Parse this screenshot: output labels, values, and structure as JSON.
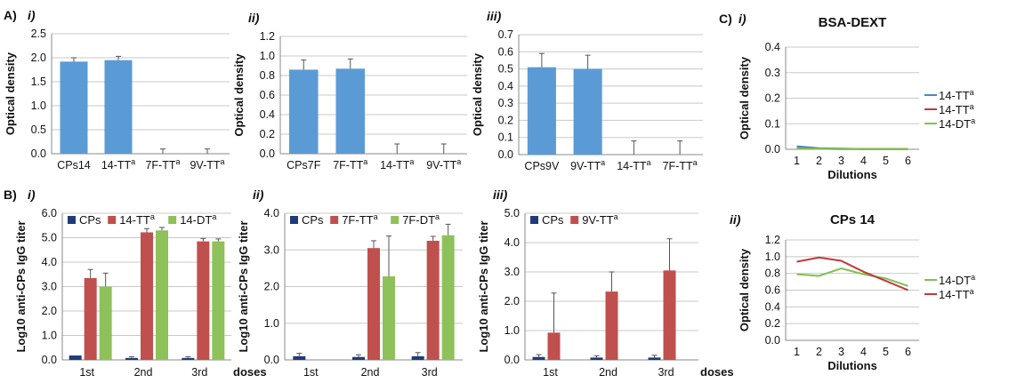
{
  "colors": {
    "blue": "#5b9bd5",
    "navy": "#1f3b7a",
    "red": "#c0504d",
    "green": "#8fc15a",
    "red_line": "#c0393b",
    "green_line": "#7fc24f",
    "blue_line": "#4a86c8"
  },
  "charts": [
    {
      "panel": "A)",
      "sub": "i)",
      "type": "bar",
      "ylabel": "Optical density",
      "categories": [
        "CPs14",
        "14-TT",
        "7F-TT",
        "9V-TT"
      ],
      "sup": [
        "",
        "a",
        "a",
        "a"
      ],
      "ylim": [
        0,
        2.5
      ],
      "yticks": [
        "0.0",
        "0.5",
        "1.0",
        "1.5",
        "2.0",
        "2.5"
      ],
      "values": [
        1.92,
        1.95,
        0.0,
        0.0
      ],
      "errors": [
        0.08,
        0.08,
        0.1,
        0.1
      ]
    },
    {
      "panel": "",
      "sub": "ii)",
      "type": "bar",
      "ylabel": "Optical density",
      "categories": [
        "CPs7F",
        "7F-TT",
        "14-TT",
        "9V-TT"
      ],
      "sup": [
        "",
        "a",
        "a",
        "a"
      ],
      "ylim": [
        0,
        1.2
      ],
      "yticks": [
        "0.0",
        "0.2",
        "0.4",
        "0.6",
        "0.8",
        "1.0",
        "1.2"
      ],
      "values": [
        0.86,
        0.87,
        0.0,
        0.0
      ],
      "errors": [
        0.1,
        0.1,
        0.1,
        0.1
      ]
    },
    {
      "panel": "",
      "sub": "iii)",
      "type": "bar",
      "ylabel": "Optical density",
      "categories": [
        "CPs9V",
        "9V-TT",
        "14-TT",
        "7F-TT"
      ],
      "sup": [
        "",
        "a",
        "a",
        "a"
      ],
      "ylim": [
        0,
        0.7
      ],
      "yticks": [
        "0.0",
        "0.1",
        "0.2",
        "0.3",
        "0.4",
        "0.5",
        "0.6",
        "0.7"
      ],
      "values": [
        0.51,
        0.5,
        0.0,
        0.0
      ],
      "errors": [
        0.08,
        0.08,
        0.08,
        0.08
      ]
    },
    {
      "panel": "B)",
      "sub": "i)",
      "type": "grouped-bar",
      "ylabel": "Log10 anti-CPs IgG titer",
      "xlabel": "doses",
      "categories": [
        "1st",
        "2nd",
        "3rd"
      ],
      "ylim": [
        0,
        6
      ],
      "yticks": [
        "0.0",
        "1.0",
        "2.0",
        "3.0",
        "4.0",
        "5.0",
        "6.0"
      ],
      "series": [
        {
          "name": "CPs",
          "sup": "",
          "color": "#1f3b7a",
          "values": [
            0.18,
            0.08,
            0.08
          ],
          "errors": [
            0,
            0.05,
            0.05
          ]
        },
        {
          "name": "14-TT",
          "sup": "a",
          "color": "#c0504d",
          "values": [
            3.35,
            5.22,
            4.85
          ],
          "errors": [
            0.35,
            0.15,
            0.12
          ]
        },
        {
          "name": "14-DT",
          "sup": "a",
          "color": "#8fc15a",
          "values": [
            3.0,
            5.3,
            4.85
          ],
          "errors": [
            0.55,
            0.12,
            0.1
          ]
        }
      ]
    },
    {
      "panel": "",
      "sub": "ii)",
      "type": "grouped-bar",
      "ylabel": "Log10 anti-CPs IgG titer",
      "xlabel": "",
      "categories": [
        "1st",
        "2nd",
        "3rd"
      ],
      "ylim": [
        0,
        4
      ],
      "yticks": [
        "0.0",
        "1.0",
        "2.0",
        "3.0",
        "4.0"
      ],
      "series": [
        {
          "name": "CPs",
          "sup": "",
          "color": "#1f3b7a",
          "values": [
            0.1,
            0.08,
            0.1
          ],
          "errors": [
            0.08,
            0.06,
            0.1
          ]
        },
        {
          "name": "7F-TT",
          "sup": "a",
          "color": "#c0504d",
          "values": [
            0.0,
            3.05,
            3.25
          ],
          "errors": [
            0,
            0.2,
            0.12
          ]
        },
        {
          "name": "7F-DT",
          "sup": "a",
          "color": "#8fc15a",
          "values": [
            0.0,
            2.28,
            3.4
          ],
          "errors": [
            0,
            1.1,
            0.3
          ]
        }
      ]
    },
    {
      "panel": "",
      "sub": "iii)",
      "type": "grouped-bar",
      "ylabel": "Log10 anti-CPs IgG titer",
      "xlabel": "doses",
      "categories": [
        "1st",
        "2nd",
        "3rd"
      ],
      "ylim": [
        0,
        5
      ],
      "yticks": [
        "0.0",
        "1.0",
        "2.0",
        "3.0",
        "4.0",
        "5.0"
      ],
      "series": [
        {
          "name": "CPs",
          "sup": "",
          "color": "#1f3b7a",
          "values": [
            0.1,
            0.08,
            0.08
          ],
          "errors": [
            0.08,
            0.06,
            0.08
          ]
        },
        {
          "name": "9V-TT",
          "sup": "a",
          "color": "#c0504d",
          "values": [
            0.93,
            2.33,
            3.05
          ],
          "errors": [
            1.35,
            0.67,
            1.08
          ]
        }
      ]
    },
    {
      "panel": "C)",
      "sub": "i)",
      "type": "line",
      "title": "BSA-DEXT",
      "ylabel": "Optical density",
      "xlabel": "Dilutions",
      "x": [
        1,
        2,
        3,
        4,
        5,
        6
      ],
      "ylim": [
        0,
        0.4
      ],
      "yticks": [
        "0.0",
        "0.1",
        "0.2",
        "0.3",
        "0.4"
      ],
      "series": [
        {
          "name": "14-TT",
          "sup": "a",
          "color": "#4a86c8",
          "values": [
            0.012,
            0.004,
            0.003,
            0.001,
            0.001,
            0.001
          ]
        },
        {
          "name": "14-TT",
          "sup": "a",
          "color": "#c0393b",
          "values": [
            0.004,
            0.002,
            0.001,
            0.001,
            0.001,
            0.001
          ]
        },
        {
          "name": "14-DT",
          "sup": "a",
          "color": "#7fc24f",
          "values": [
            0.003,
            0.002,
            0.002,
            0.001,
            0.001,
            0.001
          ]
        }
      ]
    },
    {
      "panel": "",
      "sub": "ii)",
      "type": "line",
      "title": "CPs 14",
      "ylabel": "Optical density",
      "xlabel": "Dilutions",
      "x": [
        1,
        2,
        3,
        4,
        5,
        6
      ],
      "ylim": [
        0,
        1.2
      ],
      "yticks": [
        "0.0",
        "0.2",
        "0.4",
        "0.6",
        "0.8",
        "1.0",
        "1.2"
      ],
      "series": [
        {
          "name": "14-DT",
          "sup": "a",
          "color": "#7fc24f",
          "values": [
            0.79,
            0.77,
            0.86,
            0.79,
            0.74,
            0.65
          ]
        },
        {
          "name": "14-TT",
          "sup": "a",
          "color": "#c0393b",
          "values": [
            0.94,
            0.99,
            0.95,
            0.82,
            0.71,
            0.6
          ]
        }
      ]
    }
  ]
}
